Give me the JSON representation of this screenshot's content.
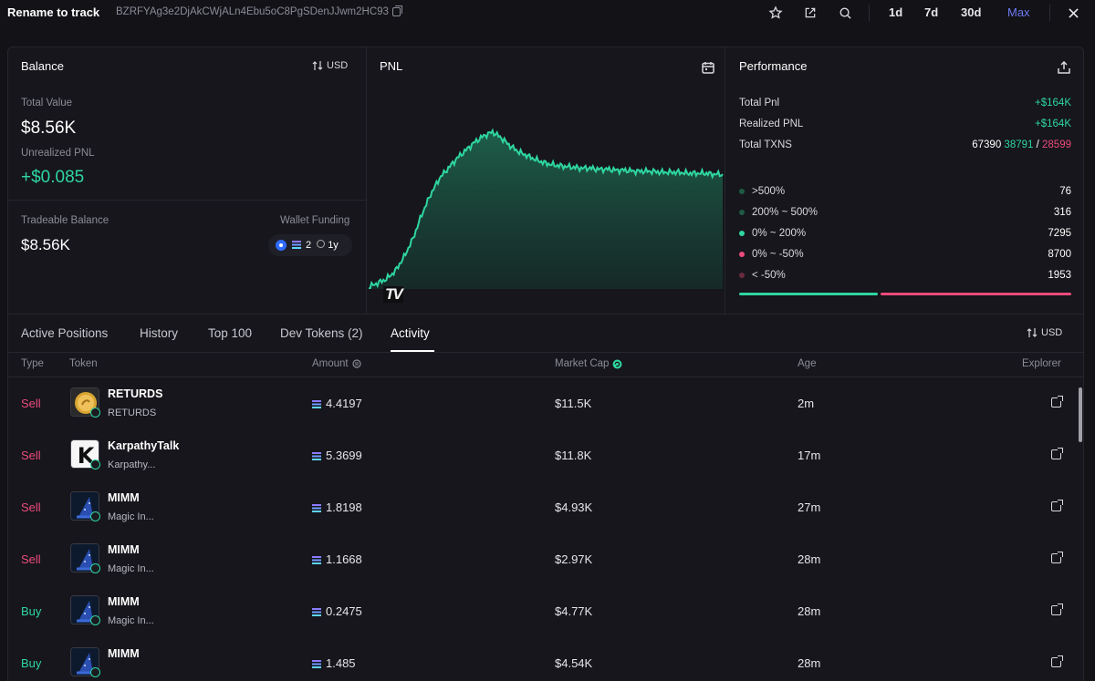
{
  "header": {
    "wallet_name": "Rename to track",
    "wallet_address": "BZRFYAg3e2DjAkCWjALn4Ebu5oC8PgSDenJJwm2HC93",
    "icons": [
      "star-icon",
      "external-link-icon",
      "search-icon",
      "close-icon"
    ],
    "timeframes": [
      "1d",
      "7d",
      "30d",
      "Max"
    ],
    "active_timeframe": "Max"
  },
  "balance": {
    "title": "Balance",
    "currency": "USD",
    "total_value_label": "Total Value",
    "total_value": "$8.56K",
    "unrealized_pnl_label": "Unrealized PNL",
    "unrealized_pnl": "+$0.085",
    "tradeable_label": "Tradeable Balance",
    "tradeable_value": "$8.56K",
    "wallet_funding_label": "Wallet Funding",
    "funding_count": "2",
    "funding_age": "1y"
  },
  "pnl": {
    "title": "PNL",
    "watermark": "TV"
  },
  "chart_data": {
    "type": "area",
    "title": "PNL",
    "x": [
      0,
      1,
      2,
      3,
      4,
      5,
      6,
      7,
      8,
      9,
      10,
      11,
      12,
      13,
      14,
      15,
      16,
      17,
      18,
      19,
      20,
      21,
      22,
      23,
      24,
      25,
      26,
      27,
      28,
      29,
      30,
      31,
      32,
      33,
      34,
      35,
      36,
      37,
      38,
      39,
      40
    ],
    "values": [
      0,
      4,
      8,
      16,
      30,
      48,
      72,
      92,
      108,
      118,
      128,
      136,
      144,
      150,
      154,
      148,
      140,
      134,
      130,
      126,
      123,
      121,
      120,
      119,
      118,
      118,
      117,
      117,
      116,
      116,
      115,
      115,
      115,
      114,
      114,
      114,
      113,
      113,
      113,
      112,
      112
    ],
    "ylim": [
      0,
      170
    ],
    "grid": false,
    "color": "#2fd6a0"
  },
  "performance": {
    "title": "Performance",
    "total_pnl_label": "Total Pnl",
    "total_pnl": "+$164K",
    "realized_pnl_label": "Realized PNL",
    "realized_pnl": "+$164K",
    "total_txns_label": "Total TXNS",
    "total_txns": "67390",
    "txns_buy": "38791",
    "txns_sep": "/",
    "txns_sell": "28599",
    "distribution": [
      {
        "label": ">500%",
        "count": "76",
        "color": "#1f5a45"
      },
      {
        "label": "200% ~ 500%",
        "count": "316",
        "color": "#1f5a45"
      },
      {
        "label": "0% ~ 200%",
        "count": "7295",
        "color": "#2fd6a0"
      },
      {
        "label": "0% ~ -50%",
        "count": "8700",
        "color": "#ec4b7c"
      },
      {
        "label": "< -50%",
        "count": "1953",
        "color": "#6b2a3e"
      }
    ],
    "win_ratio": 0.42
  },
  "tabs": {
    "items": [
      "Active Positions",
      "History",
      "Top 100",
      "Dev Tokens (2)",
      "Activity"
    ],
    "active": "Activity",
    "currency": "USD"
  },
  "table": {
    "headers": {
      "type": "Type",
      "token": "Token",
      "amount": "Amount",
      "market_cap": "Market Cap",
      "age": "Age",
      "explorer": "Explorer"
    },
    "rows": [
      {
        "type": "Sell",
        "name": "RETURDS",
        "sub": "RETURDS",
        "amount": "4.4197",
        "mcap": "$11.5K",
        "age": "2m",
        "img": "coin"
      },
      {
        "type": "Sell",
        "name": "KarpathyTalk",
        "sub": "Karpathy...",
        "amount": "5.3699",
        "mcap": "$11.8K",
        "age": "17m",
        "img": "k"
      },
      {
        "type": "Sell",
        "name": "MIMM",
        "sub": "Magic In...",
        "amount": "1.8198",
        "mcap": "$4.93K",
        "age": "27m",
        "img": "wizard"
      },
      {
        "type": "Sell",
        "name": "MIMM",
        "sub": "Magic In...",
        "amount": "1.1668",
        "mcap": "$2.97K",
        "age": "28m",
        "img": "wizard"
      },
      {
        "type": "Buy",
        "name": "MIMM",
        "sub": "Magic In...",
        "amount": "0.2475",
        "mcap": "$4.77K",
        "age": "28m",
        "img": "wizard"
      },
      {
        "type": "Buy",
        "name": "MIMM",
        "sub": "",
        "amount": "1.485",
        "mcap": "$4.54K",
        "age": "28m",
        "img": "wizard"
      }
    ]
  }
}
